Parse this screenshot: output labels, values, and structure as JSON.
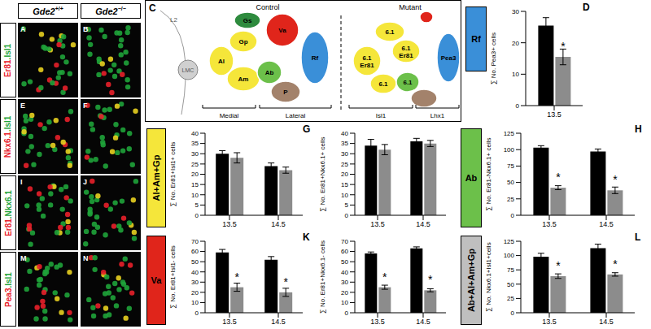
{
  "images": {
    "columns": [
      {
        "gene": "Gde2",
        "genotype": "+/+"
      },
      {
        "gene": "Gde2",
        "genotype": "−/−"
      }
    ],
    "rows": [
      {
        "panels": [
          "A",
          "B"
        ],
        "stain": [
          {
            "text": "Er81",
            "color": "#e8202a"
          },
          {
            "text": ".",
            "color": "#1fa33a"
          },
          {
            "text": "Isl1",
            "color": "#1fa33a"
          }
        ]
      },
      {
        "panels": [
          "E",
          "F"
        ],
        "stain": [
          {
            "text": "Nkx6.1",
            "color": "#e8202a"
          },
          {
            "text": ".",
            "color": "#1fa33a"
          },
          {
            "text": "Isl1",
            "color": "#1fa33a"
          }
        ]
      },
      {
        "panels": [
          "I",
          "J"
        ],
        "stain": [
          {
            "text": "Er81",
            "color": "#e8202a"
          },
          {
            "text": ".",
            "color": "#1fa33a"
          },
          {
            "text": "Nkx6.1",
            "color": "#1fa33a"
          }
        ]
      },
      {
        "panels": [
          "M",
          "N"
        ],
        "stain": [
          {
            "text": "Pea3",
            "color": "#e8202a"
          },
          {
            "text": ".",
            "color": "#1fa33a"
          },
          {
            "text": "Isl1",
            "color": "#1fa33a"
          }
        ]
      }
    ]
  },
  "diagram": {
    "panel": "C",
    "spinal": [
      "L2",
      "LMC"
    ],
    "groups": [
      {
        "title": "Control",
        "nodes": [
          {
            "label": [
              "Gs"
            ],
            "color": "#2e8b3e"
          },
          {
            "label": [
              "Va"
            ],
            "color": "#e0251b"
          },
          {
            "label": [
              "Gp"
            ],
            "color": "#f5e63a"
          },
          {
            "label": [
              "Al"
            ],
            "color": "#f5e63a"
          },
          {
            "label": [
              "Am"
            ],
            "color": "#f5e63a"
          },
          {
            "label": [
              "Ab"
            ],
            "color": "#6cc04a"
          },
          {
            "label": [
              "P"
            ],
            "color": "#a3826b"
          },
          {
            "label": [
              "Rf"
            ],
            "color": "#3a8fd8"
          }
        ],
        "brackets": [
          "Medial",
          "Lateral"
        ]
      },
      {
        "title": "Mutant",
        "nodes": [
          {
            "label": [
              "6.1"
            ],
            "color": "#f5e63a"
          },
          {
            "label": [
              "6.1",
              "Er81"
            ],
            "color": "#f5e63a"
          },
          {
            "label": [
              "6.1",
              "Er81"
            ],
            "color": "#f5e63a"
          },
          {
            "label": [
              "6.1"
            ],
            "color": "#f5e63a"
          },
          {
            "label": [
              "6.1"
            ],
            "color": "#6cc04a"
          },
          {
            "color": "#a3826b"
          },
          {
            "color": "#e0251b"
          },
          {
            "label": [
              "Pea3"
            ],
            "color": "#3a8fd8"
          }
        ],
        "brackets": [
          "Isl1",
          "Lhx1"
        ]
      }
    ]
  },
  "chart_data": [
    {
      "type": "bar",
      "panel": "D",
      "region": "Rf",
      "region_color": "#3a8fd8",
      "ylabel": "∑ No. Pea3+ cells",
      "categories": [
        "13.5"
      ],
      "series": [
        {
          "color": "#000000",
          "values": [
            25.5
          ],
          "errors": [
            2.5
          ]
        },
        {
          "color": "#8c8c8c",
          "values": [
            15.5
          ],
          "errors": [
            2.5
          ],
          "annotations": [
            "*"
          ]
        }
      ],
      "ylim": [
        0,
        30
      ],
      "yticks": [
        0,
        10,
        20,
        30
      ]
    },
    {
      "type": "bar",
      "panel": "G",
      "region": "Al+Am+Gp",
      "region_color": "#f5e63a",
      "ylabel": "∑ No. Er81+Isl1+ cells",
      "categories": [
        "13.5",
        "14.5"
      ],
      "series": [
        {
          "color": "#000000",
          "values": [
            30,
            24
          ],
          "errors": [
            1.5,
            1.5
          ]
        },
        {
          "color": "#8c8c8c",
          "values": [
            28,
            22
          ],
          "errors": [
            2.5,
            1.5
          ]
        }
      ],
      "ylim": [
        0,
        40
      ],
      "yticks": [
        0,
        5,
        10,
        15,
        20,
        25,
        30,
        35,
        40
      ]
    },
    {
      "type": "bar",
      "ylabel": "∑ No. Er81+Nkx6.1+ cells",
      "categories": [
        "13.5",
        "14.5"
      ],
      "series": [
        {
          "color": "#000000",
          "values": [
            34,
            36
          ],
          "errors": [
            3,
            1.5
          ]
        },
        {
          "color": "#8c8c8c",
          "values": [
            32,
            35
          ],
          "errors": [
            2.5,
            1.5
          ]
        }
      ],
      "ylim": [
        0,
        40
      ],
      "yticks": [
        0,
        5,
        10,
        15,
        20,
        25,
        30,
        35,
        40
      ]
    },
    {
      "type": "bar",
      "panel": "H",
      "region": "Ab",
      "region_color": "#6cc04a",
      "ylabel": "∑ No. Er81-Nkx6.1+ cells",
      "categories": [
        "13.5",
        "14.5"
      ],
      "series": [
        {
          "color": "#000000",
          "values": [
            103,
            97
          ],
          "errors": [
            3,
            4
          ]
        },
        {
          "color": "#8c8c8c",
          "values": [
            42,
            38
          ],
          "errors": [
            3,
            5
          ],
          "annotations": [
            "*",
            "*"
          ]
        }
      ],
      "ylim": [
        0,
        125
      ],
      "yticks": [
        0,
        25,
        50,
        75,
        100,
        125
      ]
    },
    {
      "type": "bar",
      "panel": "K",
      "region": "Va",
      "region_color": "#e0251b",
      "ylabel": "∑ No. Er81+Isl1- cells",
      "categories": [
        "13.5",
        "14.5"
      ],
      "series": [
        {
          "color": "#000000",
          "values": [
            59,
            52
          ],
          "errors": [
            3,
            3
          ]
        },
        {
          "color": "#8c8c8c",
          "values": [
            25,
            20
          ],
          "errors": [
            4,
            4
          ],
          "annotations": [
            "*",
            "*"
          ]
        }
      ],
      "ylim": [
        0,
        70
      ],
      "yticks": [
        0,
        10,
        20,
        30,
        40,
        50,
        60,
        70
      ]
    },
    {
      "type": "bar",
      "ylabel": "∑ No. Er81+Nkx6.1- cells",
      "categories": [
        "13.5",
        "14.5"
      ],
      "series": [
        {
          "color": "#000000",
          "values": [
            58,
            63
          ],
          "errors": [
            1.5,
            1.5
          ]
        },
        {
          "color": "#8c8c8c",
          "values": [
            25,
            22
          ],
          "errors": [
            2,
            1.5
          ],
          "annotations": [
            "*",
            "*"
          ]
        }
      ],
      "ylim": [
        0,
        70
      ],
      "yticks": [
        0,
        10,
        20,
        30,
        40,
        50,
        60,
        70
      ]
    },
    {
      "type": "bar",
      "panel": "L",
      "region": "Ab+Al+Am+Gp",
      "region_color": "#bfbfbf",
      "ylabel": "∑ No. Nkx6.1+Isl1+cells",
      "categories": [
        "13.5",
        "14.5"
      ],
      "series": [
        {
          "color": "#000000",
          "values": [
            98,
            113
          ],
          "errors": [
            6,
            7
          ]
        },
        {
          "color": "#8c8c8c",
          "values": [
            64,
            67
          ],
          "errors": [
            4,
            3
          ],
          "annotations": [
            "*",
            "*"
          ]
        }
      ],
      "ylim": [
        0,
        125
      ],
      "yticks": [
        0,
        25,
        50,
        75,
        100,
        125
      ]
    }
  ]
}
